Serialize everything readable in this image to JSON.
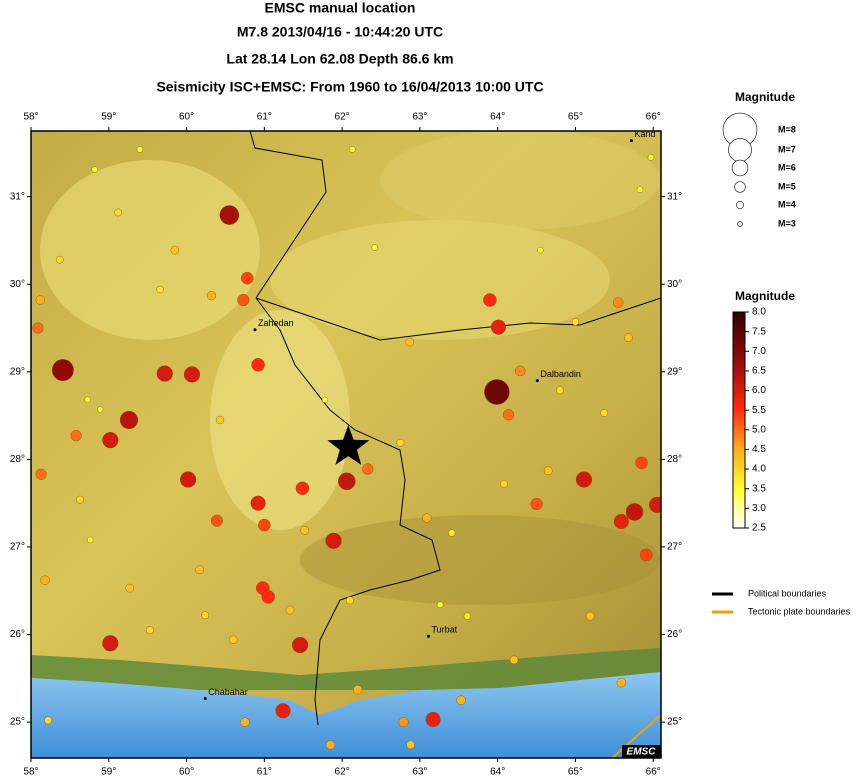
{
  "header": {
    "title": "EMSC manual location",
    "event": "M7.8  2013/04/16 - 10:44:20 UTC",
    "location": "Lat 28.14    Lon  62.08      Depth  86.6 km",
    "seismicity": "Seismicity ISC+EMSC: From 1960 to 16/04/2013 10:00 UTC"
  },
  "map": {
    "xlim": [
      58,
      66.1
    ],
    "ylim": [
      24.59,
      31.75
    ],
    "xticks": [
      {
        "value": 58,
        "label": "58°"
      },
      {
        "value": 59,
        "label": "59°"
      },
      {
        "value": 60,
        "label": "60°"
      },
      {
        "value": 61,
        "label": "61°"
      },
      {
        "value": 62,
        "label": "62°"
      },
      {
        "value": 63,
        "label": "63°"
      },
      {
        "value": 64,
        "label": "64°"
      },
      {
        "value": 65,
        "label": "65°"
      },
      {
        "value": 66,
        "label": "66°"
      }
    ],
    "yticks": [
      {
        "value": 25,
        "label": "25°"
      },
      {
        "value": 26,
        "label": "26°"
      },
      {
        "value": 27,
        "label": "27°"
      },
      {
        "value": 28,
        "label": "28°"
      },
      {
        "value": 29,
        "label": "29°"
      },
      {
        "value": 30,
        "label": "30°"
      },
      {
        "value": 31,
        "label": "31°"
      }
    ]
  },
  "epicenter": {
    "lon": 62.08,
    "lat": 28.14
  },
  "places": [
    {
      "name": "Zahedan",
      "lon": 60.88,
      "lat": 29.48
    },
    {
      "name": "Dalbandin",
      "lon": 64.51,
      "lat": 28.9
    },
    {
      "name": "Turbat",
      "lon": 63.11,
      "lat": 25.98
    },
    {
      "name": "Chabahar",
      "lon": 60.24,
      "lat": 25.27
    },
    {
      "name": "Kand",
      "lon": 65.72,
      "lat": 31.64
    }
  ],
  "events": [
    {
      "lon": 58.82,
      "lat": 31.31,
      "mag": 3.5
    },
    {
      "lon": 59.12,
      "lat": 30.82,
      "mag": 4
    },
    {
      "lon": 59.85,
      "lat": 30.39,
      "mag": 4.3
    },
    {
      "lon": 60.32,
      "lat": 29.87,
      "mag": 4.5
    },
    {
      "lon": 62.13,
      "lat": 31.54,
      "mag": 3.5
    },
    {
      "lon": 62.42,
      "lat": 30.42,
      "mag": 3.5
    },
    {
      "lon": 62.87,
      "lat": 29.34,
      "mag": 4.3
    },
    {
      "lon": 62.75,
      "lat": 28.19,
      "mag": 4
    },
    {
      "lon": 63.09,
      "lat": 27.33,
      "mag": 4.5
    },
    {
      "lon": 63.41,
      "lat": 27.16,
      "mag": 3.8
    },
    {
      "lon": 64.08,
      "lat": 27.72,
      "mag": 4
    },
    {
      "lon": 64.65,
      "lat": 27.87,
      "mag": 4.3
    },
    {
      "lon": 64.8,
      "lat": 28.79,
      "mag": 4
    },
    {
      "lon": 65.37,
      "lat": 28.53,
      "mag": 4
    },
    {
      "lon": 65.68,
      "lat": 29.39,
      "mag": 4.3
    },
    {
      "lon": 65.97,
      "lat": 31.45,
      "mag": 3.5
    },
    {
      "lon": 65.0,
      "lat": 29.57,
      "mag": 3.8
    },
    {
      "lon": 64.55,
      "lat": 30.39,
      "mag": 3.5
    },
    {
      "lon": 59.27,
      "lat": 26.53,
      "mag": 4.3
    },
    {
      "lon": 59.53,
      "lat": 26.05,
      "mag": 4
    },
    {
      "lon": 60.24,
      "lat": 26.22,
      "mag": 4
    },
    {
      "lon": 60.6,
      "lat": 25.94,
      "mag": 4.2
    },
    {
      "lon": 60.75,
      "lat": 25.0,
      "mag": 4.5
    },
    {
      "lon": 61.85,
      "lat": 24.74,
      "mag": 4.5
    },
    {
      "lon": 62.2,
      "lat": 25.37,
      "mag": 4.5
    },
    {
      "lon": 62.79,
      "lat": 25.0,
      "mag": 4.7
    },
    {
      "lon": 62.88,
      "lat": 24.74,
      "mag": 4.3
    },
    {
      "lon": 63.53,
      "lat": 25.25,
      "mag": 4.5
    },
    {
      "lon": 64.21,
      "lat": 25.71,
      "mag": 4.3
    },
    {
      "lon": 65.19,
      "lat": 26.21,
      "mag": 4.3
    },
    {
      "lon": 65.59,
      "lat": 25.45,
      "mag": 4.5
    },
    {
      "lon": 58.22,
      "lat": 25.02,
      "mag": 4
    },
    {
      "lon": 58.18,
      "lat": 26.62,
      "mag": 4.5
    },
    {
      "lon": 58.63,
      "lat": 27.54,
      "mag": 4
    },
    {
      "lon": 58.76,
      "lat": 27.08,
      "mag": 3.5
    },
    {
      "lon": 59.4,
      "lat": 31.54,
      "mag": 3.5
    },
    {
      "lon": 59.66,
      "lat": 29.94,
      "mag": 3.8
    },
    {
      "lon": 61.78,
      "lat": 28.68,
      "mag": 3.3
    },
    {
      "lon": 63.61,
      "lat": 26.21,
      "mag": 3.8
    },
    {
      "lon": 63.26,
      "lat": 26.34,
      "mag": 3.5
    },
    {
      "lon": 61.33,
      "lat": 26.28,
      "mag": 4.3
    },
    {
      "lon": 60.17,
      "lat": 26.74,
      "mag": 4.3
    },
    {
      "lon": 62.1,
      "lat": 26.39,
      "mag": 4
    },
    {
      "lon": 61.52,
      "lat": 27.19,
      "mag": 4.3
    },
    {
      "lon": 60.43,
      "lat": 28.45,
      "mag": 4.2
    },
    {
      "lon": 58.37,
      "lat": 30.28,
      "mag": 4
    },
    {
      "lon": 65.83,
      "lat": 31.08,
      "mag": 3.5
    },
    {
      "lon": 58.73,
      "lat": 28.68,
      "mag": 3.5
    },
    {
      "lon": 58.89,
      "lat": 28.57,
      "mag": 3.3
    },
    {
      "lon": 58.09,
      "lat": 29.5,
      "mag": 5
    },
    {
      "lon": 58.58,
      "lat": 28.27,
      "mag": 5
    },
    {
      "lon": 58.13,
      "lat": 27.83,
      "mag": 5
    },
    {
      "lon": 64.29,
      "lat": 29.01,
      "mag": 4.8
    },
    {
      "lon": 65.55,
      "lat": 29.79,
      "mag": 4.8
    },
    {
      "lon": 58.12,
      "lat": 29.82,
      "mag": 4.5
    },
    {
      "lon": 62.33,
      "lat": 27.89,
      "mag": 5
    },
    {
      "lon": 64.14,
      "lat": 28.51,
      "mag": 5
    },
    {
      "lon": 64.5,
      "lat": 27.49,
      "mag": 5.2
    },
    {
      "lon": 60.39,
      "lat": 27.3,
      "mag": 5.2
    },
    {
      "lon": 60.73,
      "lat": 29.82,
      "mag": 5.2
    },
    {
      "lon": 60.78,
      "lat": 30.07,
      "mag": 5.3
    },
    {
      "lon": 65.85,
      "lat": 27.96,
      "mag": 5.3
    },
    {
      "lon": 65.91,
      "lat": 26.91,
      "mag": 5.3
    },
    {
      "lon": 61.0,
      "lat": 27.25,
      "mag": 5.3
    },
    {
      "lon": 60.92,
      "lat": 29.08,
      "mag": 5.5
    },
    {
      "lon": 61.49,
      "lat": 27.67,
      "mag": 5.5
    },
    {
      "lon": 60.98,
      "lat": 26.53,
      "mag": 5.5
    },
    {
      "lon": 61.05,
      "lat": 26.43,
      "mag": 5.5
    },
    {
      "lon": 63.9,
      "lat": 29.82,
      "mag": 5.5
    },
    {
      "lon": 60.92,
      "lat": 27.5,
      "mag": 5.8
    },
    {
      "lon": 61.24,
      "lat": 25.13,
      "mag": 5.8
    },
    {
      "lon": 63.17,
      "lat": 25.03,
      "mag": 5.8
    },
    {
      "lon": 64.01,
      "lat": 29.51,
      "mag": 5.8
    },
    {
      "lon": 65.59,
      "lat": 27.29,
      "mag": 5.8
    },
    {
      "lon": 59.02,
      "lat": 28.22,
      "mag": 6
    },
    {
      "lon": 59.72,
      "lat": 28.98,
      "mag": 6
    },
    {
      "lon": 60.07,
      "lat": 28.97,
      "mag": 6
    },
    {
      "lon": 60.02,
      "lat": 27.77,
      "mag": 6
    },
    {
      "lon": 61.89,
      "lat": 27.07,
      "mag": 6
    },
    {
      "lon": 61.46,
      "lat": 25.88,
      "mag": 6
    },
    {
      "lon": 59.02,
      "lat": 25.9,
      "mag": 6
    },
    {
      "lon": 65.11,
      "lat": 27.77,
      "mag": 6
    },
    {
      "lon": 66.05,
      "lat": 27.48,
      "mag": 6
    },
    {
      "lon": 62.06,
      "lat": 27.75,
      "mag": 6.2
    },
    {
      "lon": 65.76,
      "lat": 27.4,
      "mag": 6.2
    },
    {
      "lon": 59.26,
      "lat": 28.45,
      "mag": 6.3
    },
    {
      "lon": 60.55,
      "lat": 30.79,
      "mag": 6.5
    },
    {
      "lon": 58.41,
      "lat": 29.02,
      "mag": 6.8
    },
    {
      "lon": 63.99,
      "lat": 28.77,
      "mag": 7.2
    }
  ],
  "size_legend": {
    "title": "Magnitude",
    "entries": [
      {
        "value": 8,
        "label": "M=8"
      },
      {
        "value": 7,
        "label": "M=7"
      },
      {
        "value": 6,
        "label": "M=6"
      },
      {
        "value": 5,
        "label": "M=5"
      },
      {
        "value": 4,
        "label": "M=4"
      },
      {
        "value": 3,
        "label": "M=3"
      }
    ]
  },
  "color_legend": {
    "title": "Magnitude",
    "lim": [
      2.5,
      8
    ],
    "ticks": [
      {
        "value": 8,
        "label": "8.0"
      },
      {
        "value": 7.5,
        "label": "7.5"
      },
      {
        "value": 7,
        "label": "7.0"
      },
      {
        "value": 6.5,
        "label": "6.5"
      },
      {
        "value": 6,
        "label": "6.0"
      },
      {
        "value": 5.5,
        "label": "5.5"
      },
      {
        "value": 5,
        "label": "5.0"
      },
      {
        "value": 4.5,
        "label": "4.5"
      },
      {
        "value": 4,
        "label": "4.0"
      },
      {
        "value": 3.5,
        "label": "3.5"
      },
      {
        "value": 3,
        "label": "3.0"
      },
      {
        "value": 2.5,
        "label": "2.5"
      }
    ]
  },
  "boundary_legend": {
    "political": "Political boundaries",
    "tectonic": "Tectonic plate boundaries"
  },
  "credit": "EMSC"
}
